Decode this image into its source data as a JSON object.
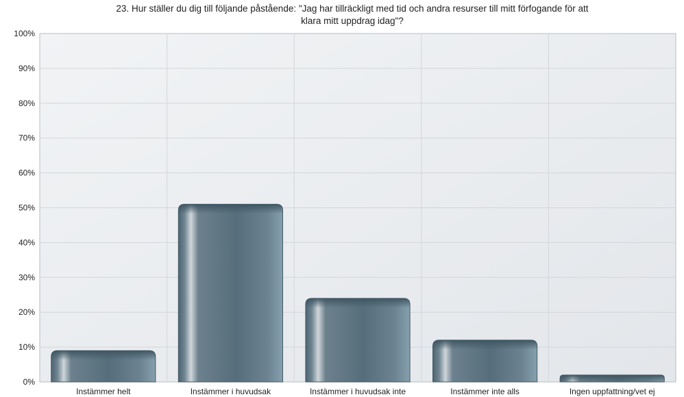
{
  "chart_data": {
    "type": "bar",
    "title_line1": "23. Hur ställer du dig till följande påstående: \"Jag har tillräckligt med tid och andra resurser till mitt förfogande för att",
    "title_line2": "klara mitt uppdrag idag\"?",
    "categories": [
      "Instämmer helt",
      "Instämmer i huvudsak",
      "Instämmer i huvudsak inte",
      "Instämmer inte alls",
      "Ingen uppfattning/vet ej"
    ],
    "values": [
      9,
      51,
      24,
      12,
      2
    ],
    "ylim": [
      0,
      100
    ],
    "yticks": [
      "0%",
      "10%",
      "20%",
      "30%",
      "40%",
      "50%",
      "60%",
      "70%",
      "80%",
      "90%",
      "100%"
    ],
    "grid": true,
    "legend": "none",
    "bar_color": "#5e7684",
    "bar_highlight": "#c9d1d6",
    "plot_background": "#eceef1"
  }
}
